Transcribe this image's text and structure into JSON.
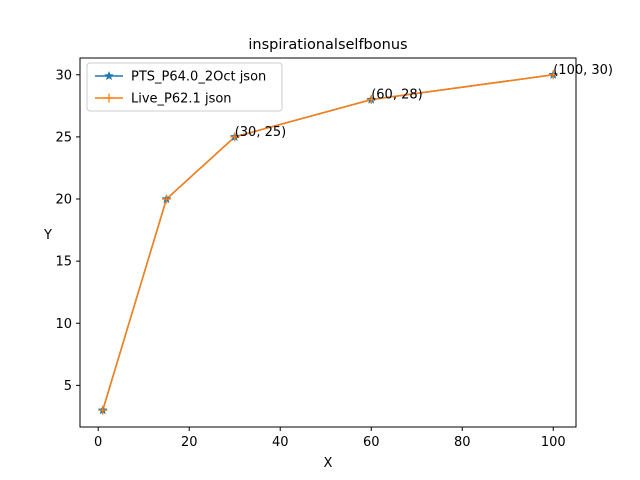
{
  "chart_data": {
    "type": "line",
    "title": "inspirationalselfbonus",
    "xlabel": "X",
    "ylabel": "Y",
    "xlim": [
      -4,
      105
    ],
    "ylim": [
      1.65,
      31.35
    ],
    "xticks": [
      0,
      20,
      40,
      60,
      80,
      100
    ],
    "yticks": [
      5,
      10,
      15,
      20,
      25,
      30
    ],
    "grid": false,
    "legend_position": "top-left",
    "series": [
      {
        "name": "PTS_P64.0_2Oct json",
        "color": "#1f77b4",
        "marker": "star",
        "x": [
          1,
          15,
          30,
          60,
          100
        ],
        "y": [
          3,
          20,
          25,
          28,
          30
        ]
      },
      {
        "name": "Live_P62.1 json",
        "color": "#ff7f0e",
        "marker": "plus",
        "x": [
          1,
          15,
          30,
          60,
          100
        ],
        "y": [
          3,
          20,
          25,
          28,
          30
        ]
      }
    ],
    "annotations": [
      {
        "text": "(30, 25)",
        "x": 30,
        "y": 25
      },
      {
        "text": "(60, 28)",
        "x": 60,
        "y": 28
      },
      {
        "text": "(100, 30)",
        "x": 100,
        "y": 30
      }
    ]
  }
}
